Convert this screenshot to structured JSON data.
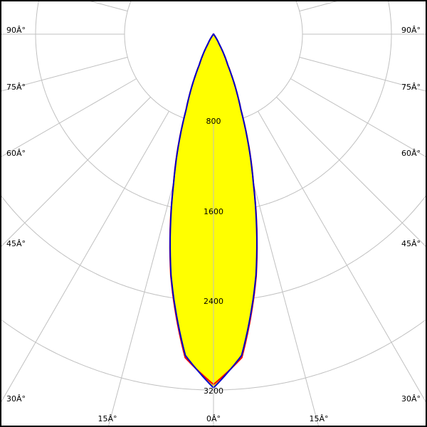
{
  "chart_data": {
    "type": "polar",
    "angle_unit": "degrees",
    "radial_ticks": [
      "800",
      "1600",
      "2400",
      "3200"
    ],
    "radial_range": [
      0,
      3200
    ],
    "angle_labels": {
      "left": [
        "90Â°",
        "75Â°",
        "60Â°",
        "45Â°",
        "30Â°"
      ],
      "bottom": [
        "15Â°",
        "0Â°",
        "15Â°"
      ],
      "right": [
        "90Â°",
        "75Â°",
        "60Â°",
        "45Â°",
        "30Â°"
      ]
    },
    "angles": [
      0,
      5,
      10,
      15,
      20,
      25,
      30,
      35,
      40,
      45,
      60,
      75,
      90
    ],
    "series": [
      {
        "color": "#ff0000",
        "values": [
          3150,
          2920,
          2210,
          1390,
          720,
          300,
          100,
          26,
          5,
          0,
          0,
          0,
          0
        ]
      },
      {
        "color": "#0000cc",
        "values": [
          3180,
          2900,
          2200,
          1384,
          715,
          302,
          101,
          26,
          5,
          0,
          0,
          0,
          0
        ]
      }
    ],
    "fill_color": "#ffff00",
    "grid": true
  }
}
